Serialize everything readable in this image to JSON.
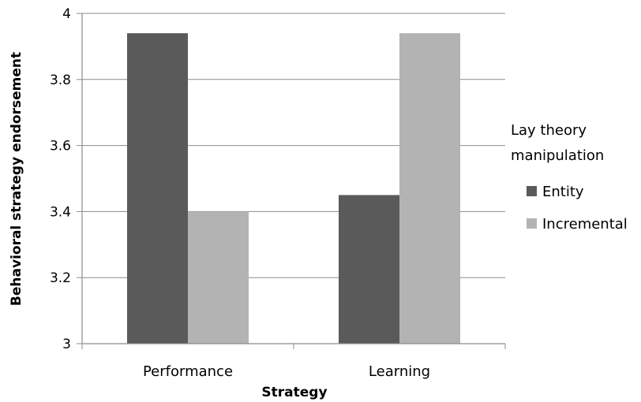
{
  "chart_data": {
    "type": "bar",
    "title": "",
    "xlabel": "Strategy",
    "ylabel": "Behavioral strategy endorsement",
    "categories": [
      "Performance",
      "Learning"
    ],
    "series": [
      {
        "name": "Entity",
        "values": [
          3.94,
          3.45
        ],
        "color": "#5a5a5a"
      },
      {
        "name": "Incremental",
        "values": [
          3.4,
          3.94
        ],
        "color": "#b3b3b3"
      }
    ],
    "ylim": [
      3,
      4
    ],
    "yticks": [
      "3",
      "3.2",
      "3.4",
      "3.6",
      "3.8",
      "4"
    ],
    "grid": true,
    "legend": {
      "title_lines": [
        "Lay theory",
        "manipulation"
      ],
      "placement": "right"
    }
  }
}
